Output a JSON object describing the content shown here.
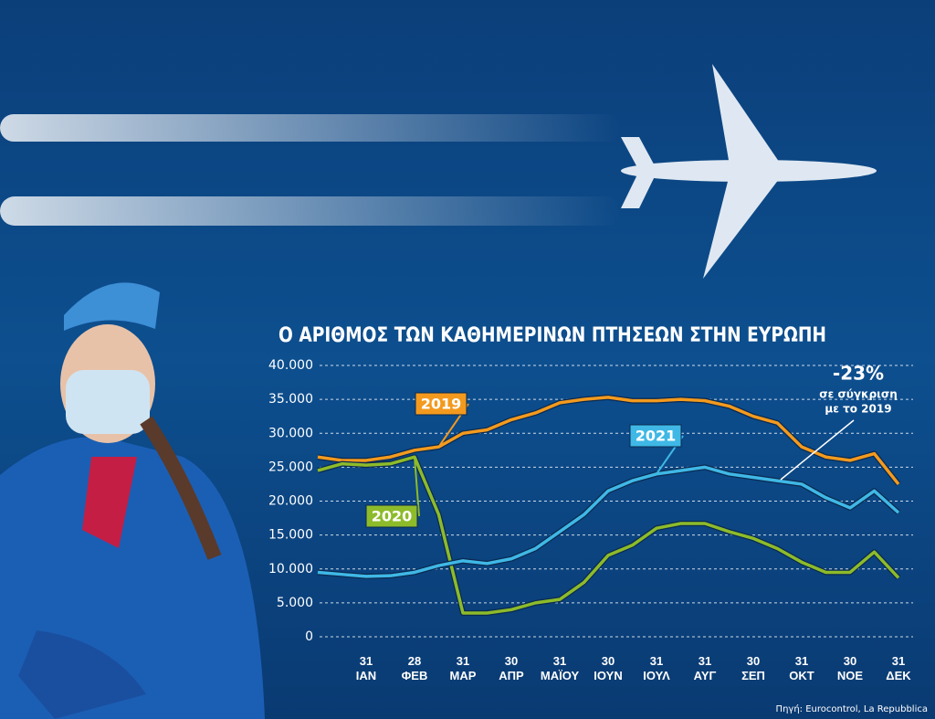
{
  "chart_data": {
    "type": "line",
    "title": "Ο ΑΡΙΘΜΟΣ ΤΩΝ ΚΑΘΗΜΕΡΙΝΩΝ ΠΤΗΣΕΩΝ ΣΤΗΝ ΕΥΡΩΠΗ",
    "categories": [
      null,
      null,
      "31 ΙΑΝ",
      null,
      "28 ΦΕΒ",
      null,
      "31 ΜΑΡ",
      null,
      "30 ΑΠΡ",
      null,
      "31 ΜΑΪΟΥ",
      null,
      "30 ΙΟΥΝ",
      null,
      "31 ΙΟΥΛ",
      null,
      "31 ΑΥΓ",
      null,
      "30 ΣΕΠ",
      null,
      "31 ΟΚΤ",
      null,
      "30 ΝΟΕ",
      null,
      "31 ΔΕΚ"
    ],
    "series": [
      {
        "name": "2019",
        "color": "#f39a1e",
        "values": [
          26500,
          26000,
          26000,
          26500,
          27500,
          28000,
          30000,
          30500,
          32000,
          33000,
          34500,
          35000,
          35300,
          34800,
          34800,
          35000,
          34800,
          34000,
          32500,
          31500,
          28000,
          26500,
          26000,
          27000,
          22500
        ]
      },
      {
        "name": "2020",
        "color": "#8dbb2a",
        "values": [
          24500,
          25500,
          25300,
          25500,
          26500,
          18000,
          3500,
          3500,
          4000,
          5000,
          5500,
          8000,
          12000,
          13500,
          16000,
          16700,
          16700,
          15500,
          14500,
          13000,
          11000,
          9500,
          9500,
          12500,
          8700
        ]
      },
      {
        "name": "2021",
        "color": "#3fb8e6",
        "values": [
          9500,
          9200,
          8900,
          9000,
          9500,
          10500,
          11200,
          10800,
          11500,
          13000,
          15500,
          18000,
          21500,
          23000,
          24000,
          24500,
          25000,
          24000,
          23500,
          23000,
          22500,
          20500,
          19000,
          21500,
          18300
        ]
      }
    ],
    "ylim": [
      0,
      40000
    ],
    "yticks": [
      0,
      {
        "value": 5000,
        "label": "5.000"
      },
      {
        "value": 10000,
        "label": "10.000"
      },
      {
        "value": 15000,
        "label": "15.000"
      },
      {
        "value": 20000,
        "label": "20.000"
      },
      {
        "value": 25000,
        "label": "25.000"
      },
      {
        "value": 30000,
        "label": "30.000"
      },
      {
        "value": 35000,
        "label": "35.000"
      },
      {
        "value": 40000,
        "label": "40.000"
      }
    ],
    "grid": true,
    "annotation": {
      "headline": "-23%",
      "lines": [
        "σε σύγκριση",
        "με το 2019"
      ]
    },
    "source": "Πηγή: Eurocontrol, La Repubblica"
  }
}
